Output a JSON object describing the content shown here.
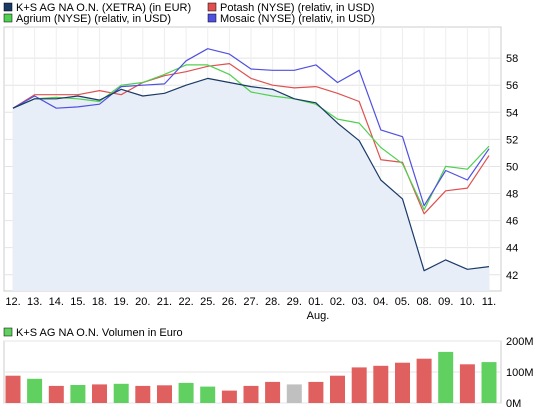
{
  "legend": [
    {
      "label": "K+S AG NA O.N. (XETRA) (in EUR)",
      "color": "#1a3a66"
    },
    {
      "label": "Potash (NYSE) (relativ, in USD)",
      "color": "#e05050"
    },
    {
      "label": "Agrium (NYSE) (relativ, in USD)",
      "color": "#50d050"
    },
    {
      "label": "Mosaic (NYSE) (relativ, in USD)",
      "color": "#5050e0"
    }
  ],
  "volume_legend": {
    "label": "K+S AG NA O.N. Volumen in Euro",
    "color": "#60d060"
  },
  "month_label": "Aug.",
  "chart_data": [
    {
      "type": "line",
      "x": [
        "12.",
        "13.",
        "14.",
        "15.",
        "18.",
        "19.",
        "20.",
        "21.",
        "22.",
        "25.",
        "26.",
        "27.",
        "28.",
        "29.",
        "01.",
        "02.",
        "03.",
        "04.",
        "05.",
        "08.",
        "09.",
        "10.",
        "11."
      ],
      "ylim": [
        40.8,
        60.3
      ],
      "y_ticks": [
        42,
        44,
        46,
        48,
        50,
        52,
        54,
        56,
        58
      ],
      "series": [
        {
          "name": "K+S AG NA O.N. (XETRA) (in EUR)",
          "color": "#1a3a66",
          "area_fill": "#e8eef8",
          "values": [
            54.3,
            55.0,
            55.0,
            55.2,
            54.9,
            55.7,
            55.2,
            55.4,
            56.0,
            56.5,
            56.2,
            55.9,
            55.7,
            55.0,
            54.7,
            53.2,
            51.9,
            49.0,
            47.6,
            42.3,
            43.1,
            42.4,
            42.6
          ]
        },
        {
          "name": "Potash (NYSE) (relativ, in USD)",
          "color": "#e05050",
          "values": [
            54.3,
            55.3,
            55.3,
            55.3,
            55.6,
            55.3,
            56.2,
            56.7,
            57.0,
            57.4,
            57.6,
            56.5,
            56.0,
            55.8,
            55.9,
            55.4,
            54.8,
            50.5,
            50.3,
            46.5,
            48.2,
            48.4,
            50.8
          ]
        },
        {
          "name": "Agrium (NYSE) (relativ, in USD)",
          "color": "#50d050",
          "values": [
            54.3,
            55.0,
            55.1,
            55.0,
            54.8,
            56.0,
            56.2,
            56.8,
            57.5,
            57.5,
            56.8,
            55.5,
            55.2,
            55.0,
            54.6,
            53.5,
            53.2,
            51.4,
            50.2,
            46.8,
            50.0,
            49.8,
            51.5
          ]
        },
        {
          "name": "Mosaic (NYSE) (relativ, in USD)",
          "color": "#5050e0",
          "values": [
            54.3,
            55.2,
            54.3,
            54.4,
            54.6,
            55.9,
            56.0,
            56.1,
            57.8,
            58.7,
            58.3,
            57.2,
            57.1,
            57.1,
            57.5,
            56.2,
            57.1,
            52.7,
            52.2,
            47.1,
            49.7,
            49.0,
            51.3
          ]
        }
      ]
    },
    {
      "type": "bar",
      "title": "K+S AG NA O.N. Volumen in Euro",
      "categories": [
        "12.",
        "13.",
        "14.",
        "15.",
        "18.",
        "19.",
        "20.",
        "21.",
        "22.",
        "25.",
        "26.",
        "27.",
        "28.",
        "29.",
        "01.",
        "02.",
        "03.",
        "04.",
        "05.",
        "08.",
        "09.",
        "10.",
        "11."
      ],
      "values": [
        88,
        78,
        55,
        58,
        60,
        62,
        55,
        57,
        65,
        53,
        40,
        55,
        68,
        60,
        68,
        88,
        115,
        120,
        130,
        143,
        165,
        125,
        132
      ],
      "bar_colors": [
        "#e06060",
        "#60d060",
        "#e06060",
        "#60d060",
        "#e06060",
        "#60d060",
        "#e06060",
        "#e06060",
        "#60d060",
        "#60d060",
        "#e06060",
        "#e06060",
        "#e06060",
        "#c0c0c0",
        "#e06060",
        "#e06060",
        "#e06060",
        "#e06060",
        "#e06060",
        "#e06060",
        "#60d060",
        "#e06060",
        "#60d060"
      ],
      "ylim": [
        0,
        200
      ],
      "y_tick_values": [
        0,
        100,
        200
      ],
      "y_tick_labels": [
        "0M",
        "100M",
        "200M"
      ]
    }
  ]
}
